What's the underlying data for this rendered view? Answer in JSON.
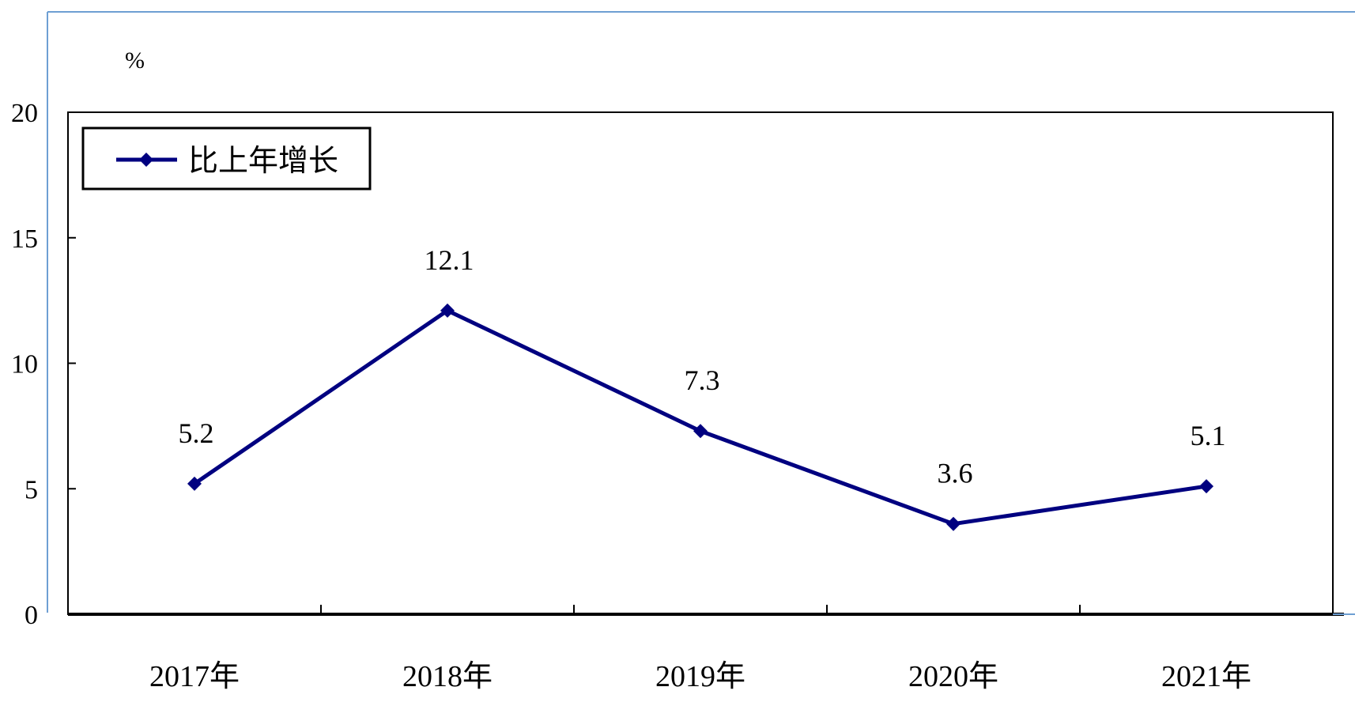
{
  "chart_data": {
    "type": "line",
    "unit_label": "%",
    "categories": [
      "2017年",
      "2018年",
      "2019年",
      "2020年",
      "2021年"
    ],
    "series": [
      {
        "name": "比上年增长",
        "values": [
          5.2,
          12.1,
          7.3,
          3.6,
          5.1
        ],
        "data_labels": [
          "5.2",
          "12.1",
          "7.3",
          "3.6",
          "5.1"
        ],
        "color": "#000080"
      }
    ],
    "ylim": [
      0,
      20
    ],
    "yticks": [
      0,
      5,
      10,
      15,
      20
    ],
    "ytick_labels": [
      "0",
      "5",
      "10",
      "15",
      "20"
    ],
    "grid": false,
    "legend_position": "top-left",
    "colors": {
      "line": "#000080",
      "frame_outer": "#6E9FD3",
      "axis": "#000000"
    }
  }
}
